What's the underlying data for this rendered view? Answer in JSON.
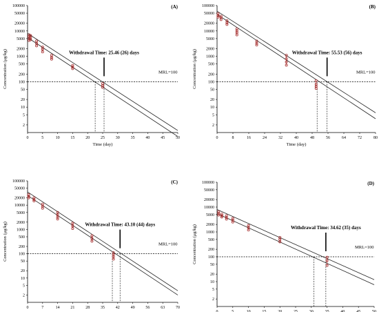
{
  "chart_data": [
    {
      "type": "scatter",
      "panel_label": "(A)",
      "xlabel": "Time (day)",
      "ylabel": "Concentration (μg/kg)",
      "x_ticks": [
        0,
        5,
        10,
        15,
        20,
        25,
        30,
        35,
        40,
        45,
        50
      ],
      "xlim": [
        0,
        50
      ],
      "y_ticks": [
        "100000",
        "50000",
        "20000",
        "10000",
        "5000",
        "2000",
        "1000",
        "500",
        "200",
        "100",
        "50",
        "20",
        "10",
        "5",
        "2"
      ],
      "y_scale": "log",
      "ylim": [
        1,
        100000
      ],
      "mrl": 100,
      "mrl_label": "MRL=100",
      "withdrawal_time": 25.46,
      "withdrawal_label": "Withdrawal Time: 25.46 (26) days",
      "lower_crossing": 22.5,
      "upper_line": {
        "x": [
          0,
          50
        ],
        "y": [
          8000,
          1.2
        ]
      },
      "lower_line": {
        "x": [
          0,
          50
        ],
        "y": [
          5500,
          0.7
        ]
      },
      "points": [
        {
          "x": 0.5,
          "y": [
            7000,
            6000,
            5000,
            4200
          ]
        },
        {
          "x": 1,
          "y": [
            6500,
            5500,
            4500
          ]
        },
        {
          "x": 3,
          "y": [
            4000,
            3200,
            2600
          ]
        },
        {
          "x": 5,
          "y": [
            2300,
            1900,
            1500
          ]
        },
        {
          "x": 8,
          "y": [
            1100,
            900,
            780
          ]
        },
        {
          "x": 15,
          "y": [
            440,
            380,
            330
          ]
        },
        {
          "x": 25,
          "y": [
            85,
            70,
            60
          ]
        }
      ]
    },
    {
      "type": "scatter",
      "panel_label": "(B)",
      "xlabel": "Time (day)",
      "ylabel": "Concentration (μg/kg)",
      "x_ticks": [
        0,
        8,
        16,
        24,
        32,
        40,
        48,
        56,
        64,
        72,
        80
      ],
      "xlim": [
        0,
        80
      ],
      "y_ticks": [
        "100000",
        "50000",
        "20000",
        "10000",
        "5000",
        "2000",
        "1000",
        "500",
        "200",
        "100",
        "50",
        "20",
        "10",
        "5",
        "2"
      ],
      "y_scale": "log",
      "ylim": [
        1,
        100000
      ],
      "mrl": 100,
      "mrl_label": "MRL=100",
      "withdrawal_time": 55.53,
      "withdrawal_label": "Withdrawal Time: 55.53 (56) days",
      "lower_crossing": 50.5,
      "upper_line": {
        "x": [
          0,
          80
        ],
        "y": [
          60000,
          6
        ]
      },
      "lower_line": {
        "x": [
          0,
          80
        ],
        "y": [
          45000,
          3.5
        ]
      },
      "points": [
        {
          "x": 0.5,
          "y": [
            48000,
            40000,
            35000
          ]
        },
        {
          "x": 2,
          "y": [
            38000,
            33000,
            28000
          ]
        },
        {
          "x": 5,
          "y": [
            25000,
            21000,
            18000
          ]
        },
        {
          "x": 10,
          "y": [
            12000,
            10000,
            8500,
            7000
          ]
        },
        {
          "x": 20,
          "y": [
            4000,
            3300,
            2800
          ]
        },
        {
          "x": 35,
          "y": [
            1100,
            800,
            600,
            450
          ]
        },
        {
          "x": 50,
          "y": [
            110,
            80,
            65,
            55
          ]
        }
      ]
    },
    {
      "type": "scatter",
      "panel_label": "(C)",
      "xlabel": "Time (day)",
      "ylabel": "Concentration (μg/kg)",
      "x_ticks": [
        0,
        7,
        14,
        21,
        28,
        35,
        42,
        49,
        56,
        63,
        70
      ],
      "xlim": [
        0,
        70
      ],
      "y_ticks": [
        "100000",
        "50000",
        "20000",
        "10000",
        "5000",
        "2000",
        "1000",
        "500",
        "200",
        "100",
        "50",
        "20",
        "10",
        "5",
        "2"
      ],
      "y_scale": "log",
      "ylim": [
        1,
        100000
      ],
      "mrl": 100,
      "mrl_label": "MRL=100",
      "withdrawal_time": 43.1,
      "withdrawal_label": "Withdrawal Time: 43.10 (44) days",
      "lower_crossing": 39.5,
      "upper_line": {
        "x": [
          0,
          70
        ],
        "y": [
          35000,
          3
        ]
      },
      "lower_line": {
        "x": [
          0,
          70
        ],
        "y": [
          25000,
          2
        ]
      },
      "points": [
        {
          "x": 0.5,
          "y": [
            27000,
            23000,
            20000
          ]
        },
        {
          "x": 3,
          "y": [
            20000,
            17000,
            15000
          ]
        },
        {
          "x": 7,
          "y": [
            11000,
            9000,
            7500
          ]
        },
        {
          "x": 14,
          "y": [
            5000,
            4000,
            3200,
            2700
          ]
        },
        {
          "x": 21,
          "y": [
            1800,
            1400,
            1100
          ]
        },
        {
          "x": 30,
          "y": [
            550,
            420,
            330
          ]
        },
        {
          "x": 40,
          "y": [
            110,
            90,
            75,
            60
          ]
        }
      ]
    },
    {
      "type": "scatter",
      "panel_label": "(D)",
      "xlabel": "Time (day)",
      "ylabel": "Concentration (μg/kg)",
      "x_ticks": [
        0,
        5,
        10,
        15,
        20,
        25,
        30,
        35,
        40,
        45,
        50
      ],
      "xlim": [
        0,
        50
      ],
      "y_ticks": [
        "100000",
        "50000",
        "20000",
        "10000",
        "5000",
        "2000",
        "1000",
        "500",
        "200",
        "100",
        "50",
        "20",
        "10",
        "5",
        "2"
      ],
      "y_scale": "log",
      "ylim": [
        1,
        100000
      ],
      "mrl": 100,
      "mrl_label": "MRL=100",
      "withdrawal_time": 34.62,
      "withdrawal_label": "Withdrawal Time: 34.62 (35) days",
      "lower_crossing": 30.8,
      "upper_line": {
        "x": [
          0,
          50
        ],
        "y": [
          8000,
          12
        ]
      },
      "lower_line": {
        "x": [
          0,
          50
        ],
        "y": [
          5500,
          7.5
        ]
      },
      "points": [
        {
          "x": 0.5,
          "y": [
            6500,
            5500,
            4800
          ]
        },
        {
          "x": 1.5,
          "y": [
            5200,
            4500,
            4000
          ]
        },
        {
          "x": 3,
          "y": [
            4500,
            3800,
            3300
          ]
        },
        {
          "x": 5,
          "y": [
            3500,
            3000,
            2500
          ]
        },
        {
          "x": 10,
          "y": [
            1800,
            1500,
            1200
          ]
        },
        {
          "x": 20,
          "y": [
            600,
            500,
            400
          ]
        },
        {
          "x": 35,
          "y": [
            95,
            70,
            45
          ]
        }
      ]
    }
  ]
}
